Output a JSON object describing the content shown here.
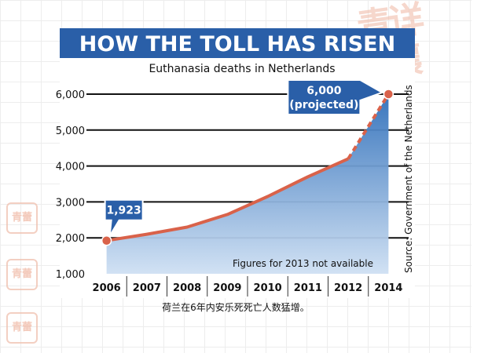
{
  "chart_data": {
    "type": "line",
    "title": "HOW THE TOLL HAS RISEN",
    "subtitle": "Euthanasia deaths in Netherlands",
    "source": "Source: Government of the Netherlands",
    "note": "Figures for 2013 not available",
    "x": [
      "2006",
      "2007",
      "2008",
      "2009",
      "2010",
      "2011",
      "2012",
      "2014"
    ],
    "series": [
      {
        "values": [
          1923,
          2100,
          2300,
          2650,
          3150,
          3700,
          4200,
          6000
        ]
      }
    ],
    "ylim": [
      1000,
      6000
    ],
    "yticks": [
      "1,000",
      "2,000",
      "3,000",
      "4,000",
      "5,000",
      "6,000"
    ],
    "annotations": {
      "first": "1,923",
      "last_value": "6,000",
      "last_note": "(projected)"
    },
    "colors": {
      "title_bg": "#2a5fa8",
      "line": "#d9624a",
      "area": "#3f7ec7"
    }
  },
  "caption": "荷兰在6年内安乐死死亡人数猛增。"
}
